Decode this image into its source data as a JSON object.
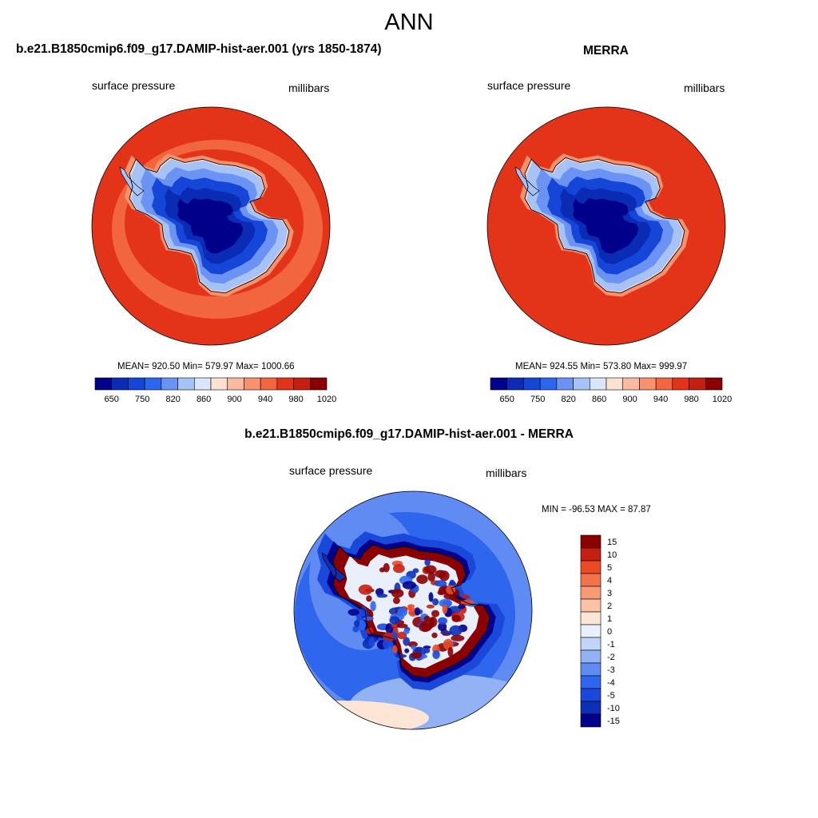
{
  "figure_title": "ANN",
  "colors": {
    "abs_scale": [
      "#00008b",
      "#0a2cb4",
      "#1646d8",
      "#2d66ee",
      "#6a93f4",
      "#a6c2f7",
      "#d9e6fb",
      "#fde2d2",
      "#fbbba0",
      "#f8916d",
      "#f2663f",
      "#e3341a",
      "#c41f10",
      "#8b0000"
    ],
    "diff_scale": [
      "#00008b",
      "#0d2fb7",
      "#1a48db",
      "#2f66ee",
      "#5f8bf2",
      "#93b1f5",
      "#c2d5f8",
      "#e9f0fc",
      "#fde6d6",
      "#fbc3a6",
      "#f89a72",
      "#f27349",
      "#ea4a24",
      "#c41f10",
      "#8b0000"
    ],
    "land_outline": "#000000"
  },
  "panels": [
    {
      "id": "model",
      "title": "b.e21.B1850cmip6.f09_g17.DAMIP-hist-aer.001 (yrs 1850-1874)",
      "variable": "surface pressure",
      "units": "millibars",
      "stats": "MEAN= 920.50  Min= 579.97  Max= 1000.66"
    },
    {
      "id": "obs",
      "title": "MERRA",
      "variable": "surface pressure",
      "units": "millibars",
      "stats": "MEAN= 924.55  Min= 573.80  Max= 999.97"
    },
    {
      "id": "diff",
      "title": "b.e21.B1850cmip6.f09_g17.DAMIP-hist-aer.001 - MERRA",
      "variable": "surface pressure",
      "units": "millibars",
      "stats": "MIN = -96.53 MAX =  87.87"
    }
  ],
  "chart_data": [
    {
      "type": "heatmap",
      "title": "b.e21.B1850cmip6.f09_g17.DAMIP-hist-aer.001 (yrs 1850-1874)",
      "variable": "surface pressure",
      "units": "millibars",
      "projection": "south polar stereographic",
      "colorbar_ticks": [
        "650",
        "750",
        "820",
        "860",
        "900",
        "940",
        "980",
        "1020"
      ],
      "mean": 920.5,
      "min": 579.97,
      "max": 1000.66
    },
    {
      "type": "heatmap",
      "title": "MERRA",
      "variable": "surface pressure",
      "units": "millibars",
      "projection": "south polar stereographic",
      "colorbar_ticks": [
        "650",
        "750",
        "820",
        "860",
        "900",
        "940",
        "980",
        "1020"
      ],
      "mean": 924.55,
      "min": 573.8,
      "max": 999.97
    },
    {
      "type": "heatmap",
      "title": "b.e21.B1850cmip6.f09_g17.DAMIP-hist-aer.001 - MERRA",
      "variable": "surface pressure",
      "units": "millibars",
      "projection": "south polar stereographic",
      "colorbar_ticks": [
        "15",
        "10",
        "5",
        "4",
        "3",
        "2",
        "1",
        "0",
        "-1",
        "-2",
        "-3",
        "-4",
        "-5",
        "-10",
        "-15"
      ],
      "min": -96.53,
      "max": 87.87
    }
  ]
}
